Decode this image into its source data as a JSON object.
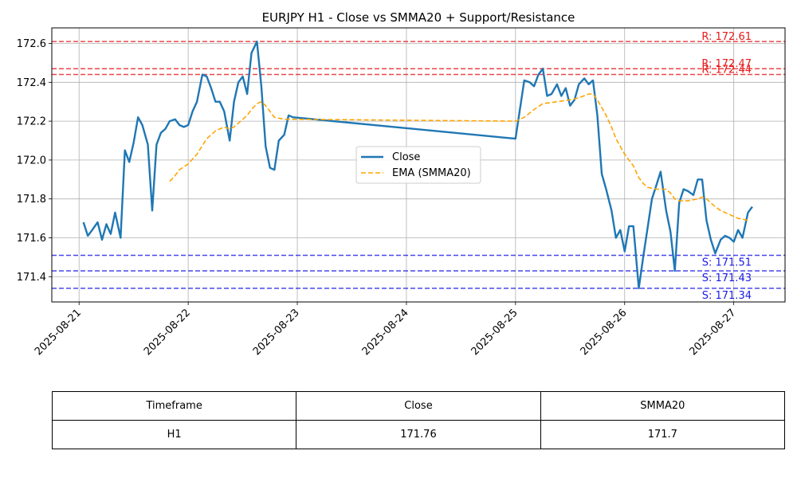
{
  "chart_data": {
    "type": "line",
    "title": "EURJPY H1 - Close vs SMMA20 + Support/Resistance",
    "xlabel": "",
    "ylabel": "",
    "x_ticks": [
      "2025-08-21",
      "2025-08-22",
      "2025-08-23",
      "2025-08-24",
      "2025-08-25",
      "2025-08-26",
      "2025-08-27"
    ],
    "y_ticks": [
      "171.4",
      "171.6",
      "171.8",
      "172.0",
      "172.2",
      "172.4",
      "172.6"
    ],
    "ylim": [
      171.27,
      172.68
    ],
    "xlim_days": [
      -0.25,
      6.47
    ],
    "grid": true,
    "legend_position": "center",
    "series": [
      {
        "name": "Close",
        "color": "#1f77b4",
        "style": "solid",
        "points": [
          [
            0.04,
            171.68
          ],
          [
            0.08,
            171.61
          ],
          [
            0.12,
            171.64
          ],
          [
            0.17,
            171.68
          ],
          [
            0.21,
            171.59
          ],
          [
            0.25,
            171.67
          ],
          [
            0.29,
            171.62
          ],
          [
            0.33,
            171.73
          ],
          [
            0.38,
            171.6
          ],
          [
            0.42,
            172.05
          ],
          [
            0.46,
            171.99
          ],
          [
            0.5,
            172.09
          ],
          [
            0.54,
            172.22
          ],
          [
            0.58,
            172.18
          ],
          [
            0.63,
            172.08
          ],
          [
            0.67,
            171.74
          ],
          [
            0.71,
            172.08
          ],
          [
            0.75,
            172.14
          ],
          [
            0.79,
            172.16
          ],
          [
            0.83,
            172.2
          ],
          [
            0.88,
            172.21
          ],
          [
            0.92,
            172.18
          ],
          [
            0.96,
            172.17
          ],
          [
            1.0,
            172.18
          ],
          [
            1.04,
            172.25
          ],
          [
            1.08,
            172.3
          ],
          [
            1.13,
            172.44
          ],
          [
            1.17,
            172.43
          ],
          [
            1.21,
            172.37
          ],
          [
            1.25,
            172.3
          ],
          [
            1.29,
            172.3
          ],
          [
            1.33,
            172.25
          ],
          [
            1.38,
            172.1
          ],
          [
            1.42,
            172.3
          ],
          [
            1.46,
            172.4
          ],
          [
            1.5,
            172.43
          ],
          [
            1.54,
            172.34
          ],
          [
            1.58,
            172.55
          ],
          [
            1.63,
            172.61
          ],
          [
            1.67,
            172.38
          ],
          [
            1.71,
            172.07
          ],
          [
            1.75,
            171.96
          ],
          [
            1.79,
            171.95
          ],
          [
            1.83,
            172.1
          ],
          [
            1.88,
            172.13
          ],
          [
            1.92,
            172.23
          ],
          [
            1.96,
            172.22
          ],
          [
            4.0,
            172.11
          ],
          [
            4.08,
            172.41
          ],
          [
            4.13,
            172.4
          ],
          [
            4.17,
            172.38
          ],
          [
            4.21,
            172.44
          ],
          [
            4.25,
            172.47
          ],
          [
            4.29,
            172.33
          ],
          [
            4.33,
            172.34
          ],
          [
            4.38,
            172.39
          ],
          [
            4.42,
            172.33
          ],
          [
            4.46,
            172.37
          ],
          [
            4.5,
            172.28
          ],
          [
            4.54,
            172.31
          ],
          [
            4.58,
            172.39
          ],
          [
            4.63,
            172.42
          ],
          [
            4.67,
            172.39
          ],
          [
            4.71,
            172.41
          ],
          [
            4.75,
            172.23
          ],
          [
            4.79,
            171.93
          ],
          [
            4.83,
            171.85
          ],
          [
            4.88,
            171.74
          ],
          [
            4.92,
            171.6
          ],
          [
            4.96,
            171.64
          ],
          [
            5.0,
            171.53
          ],
          [
            5.04,
            171.66
          ],
          [
            5.08,
            171.66
          ],
          [
            5.13,
            171.34
          ],
          [
            5.17,
            171.5
          ],
          [
            5.21,
            171.65
          ],
          [
            5.25,
            171.8
          ],
          [
            5.29,
            171.87
          ],
          [
            5.33,
            171.94
          ],
          [
            5.38,
            171.74
          ],
          [
            5.42,
            171.63
          ],
          [
            5.46,
            171.43
          ],
          [
            5.5,
            171.78
          ],
          [
            5.54,
            171.85
          ],
          [
            5.58,
            171.84
          ],
          [
            5.63,
            171.82
          ],
          [
            5.67,
            171.9
          ],
          [
            5.71,
            171.9
          ],
          [
            5.75,
            171.69
          ],
          [
            5.79,
            171.59
          ],
          [
            5.83,
            171.52
          ],
          [
            5.88,
            171.59
          ],
          [
            5.92,
            171.61
          ],
          [
            5.96,
            171.6
          ],
          [
            6.0,
            171.58
          ],
          [
            6.04,
            171.64
          ],
          [
            6.08,
            171.6
          ],
          [
            6.13,
            171.73
          ],
          [
            6.17,
            171.76
          ]
        ]
      },
      {
        "name": "EMA (SMMA20)",
        "color": "#ffa500",
        "style": "dashed",
        "points": [
          [
            0.83,
            171.89
          ],
          [
            0.88,
            171.92
          ],
          [
            0.92,
            171.95
          ],
          [
            1.0,
            171.98
          ],
          [
            1.08,
            172.03
          ],
          [
            1.17,
            172.11
          ],
          [
            1.25,
            172.15
          ],
          [
            1.33,
            172.17
          ],
          [
            1.38,
            172.16
          ],
          [
            1.42,
            172.17
          ],
          [
            1.5,
            172.21
          ],
          [
            1.54,
            172.23
          ],
          [
            1.58,
            172.26
          ],
          [
            1.63,
            172.29
          ],
          [
            1.67,
            172.3
          ],
          [
            1.71,
            172.28
          ],
          [
            1.75,
            172.25
          ],
          [
            1.79,
            172.22
          ],
          [
            1.88,
            172.21
          ],
          [
            1.96,
            172.21
          ],
          [
            4.0,
            172.2
          ],
          [
            4.08,
            172.22
          ],
          [
            4.17,
            172.26
          ],
          [
            4.25,
            172.29
          ],
          [
            4.38,
            172.3
          ],
          [
            4.5,
            172.31
          ],
          [
            4.58,
            172.32
          ],
          [
            4.67,
            172.34
          ],
          [
            4.71,
            172.34
          ],
          [
            4.75,
            172.31
          ],
          [
            4.79,
            172.27
          ],
          [
            4.83,
            172.23
          ],
          [
            4.88,
            172.17
          ],
          [
            4.92,
            172.11
          ],
          [
            5.0,
            172.03
          ],
          [
            5.08,
            171.97
          ],
          [
            5.13,
            171.91
          ],
          [
            5.17,
            171.88
          ],
          [
            5.21,
            171.86
          ],
          [
            5.29,
            171.85
          ],
          [
            5.38,
            171.85
          ],
          [
            5.42,
            171.83
          ],
          [
            5.46,
            171.8
          ],
          [
            5.5,
            171.79
          ],
          [
            5.58,
            171.79
          ],
          [
            5.67,
            171.8
          ],
          [
            5.71,
            171.81
          ],
          [
            5.75,
            171.8
          ],
          [
            5.79,
            171.78
          ],
          [
            5.83,
            171.76
          ],
          [
            5.88,
            171.74
          ],
          [
            5.96,
            171.72
          ],
          [
            6.04,
            171.7
          ],
          [
            6.13,
            171.69
          ]
        ]
      }
    ],
    "support_resistance": [
      {
        "kind": "resistance",
        "value": 172.61,
        "label": "R: 172.61",
        "color": "#e8191a"
      },
      {
        "kind": "resistance",
        "value": 172.47,
        "label": "R: 172.47",
        "color": "#e8191a"
      },
      {
        "kind": "resistance",
        "value": 172.44,
        "label": "R: 172.44",
        "color": "#e8191a"
      },
      {
        "kind": "support",
        "value": 171.51,
        "label": "S: 171.51",
        "color": "#1a1ae8"
      },
      {
        "kind": "support",
        "value": 171.43,
        "label": "S: 171.43",
        "color": "#1a1ae8"
      },
      {
        "kind": "support",
        "value": 171.34,
        "label": "S: 171.34",
        "color": "#1a1ae8"
      }
    ]
  },
  "table": {
    "headers": [
      "Timeframe",
      "Close",
      "SMMA20"
    ],
    "row": [
      "H1",
      "171.76",
      "171.7"
    ]
  }
}
